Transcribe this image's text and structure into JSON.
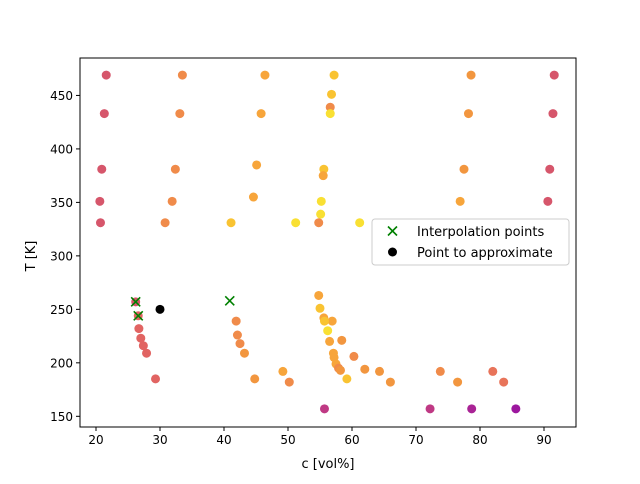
{
  "chart_data": {
    "type": "scatter",
    "xlabel": "c [vol%]",
    "ylabel": "T [K]",
    "xlim": [
      17.5,
      95
    ],
    "ylim": [
      140,
      485
    ],
    "xticks": [
      20,
      30,
      40,
      50,
      60,
      70,
      80,
      90
    ],
    "yticks": [
      150,
      200,
      250,
      300,
      350,
      400,
      450
    ],
    "grid": false,
    "legend": {
      "placement": "center-right"
    },
    "colors": {
      "interpolation_marker": "#008000",
      "approximate_marker": "#000000",
      "axes": "#000000"
    },
    "series": [
      {
        "name": "",
        "marker": "circle",
        "points": [
          {
            "x": 21.6,
            "y": 469,
            "color": "#d6566b"
          },
          {
            "x": 33.5,
            "y": 469,
            "color": "#f08b4a"
          },
          {
            "x": 46.4,
            "y": 469,
            "color": "#f7a53b"
          },
          {
            "x": 57.2,
            "y": 469,
            "color": "#f9c332"
          },
          {
            "x": 78.6,
            "y": 469,
            "color": "#f2963f"
          },
          {
            "x": 91.6,
            "y": 469,
            "color": "#d6566b"
          },
          {
            "x": 56.8,
            "y": 451,
            "color": "#f9c332"
          },
          {
            "x": 56.6,
            "y": 439,
            "color": "#f08b4a"
          },
          {
            "x": 21.3,
            "y": 433,
            "color": "#d6566b"
          },
          {
            "x": 33.1,
            "y": 433,
            "color": "#f08b4a"
          },
          {
            "x": 45.8,
            "y": 433,
            "color": "#f7a53b"
          },
          {
            "x": 56.6,
            "y": 433,
            "color": "#f9e033"
          },
          {
            "x": 78.2,
            "y": 433,
            "color": "#f2963f"
          },
          {
            "x": 91.4,
            "y": 433,
            "color": "#d6566b"
          },
          {
            "x": 45.1,
            "y": 385,
            "color": "#f7a53b"
          },
          {
            "x": 20.9,
            "y": 381,
            "color": "#d6566b"
          },
          {
            "x": 32.4,
            "y": 381,
            "color": "#f08b4a"
          },
          {
            "x": 55.6,
            "y": 381,
            "color": "#f9c332"
          },
          {
            "x": 77.5,
            "y": 381,
            "color": "#f2963f"
          },
          {
            "x": 90.9,
            "y": 381,
            "color": "#d6566b"
          },
          {
            "x": 55.5,
            "y": 375,
            "color": "#f7a53b"
          },
          {
            "x": 44.6,
            "y": 355,
            "color": "#f7a53b"
          },
          {
            "x": 20.6,
            "y": 351,
            "color": "#d6566b"
          },
          {
            "x": 31.9,
            "y": 351,
            "color": "#f08b4a"
          },
          {
            "x": 55.2,
            "y": 351,
            "color": "#f9e033"
          },
          {
            "x": 76.9,
            "y": 351,
            "color": "#f7a53b"
          },
          {
            "x": 90.6,
            "y": 351,
            "color": "#d6566b"
          },
          {
            "x": 55.1,
            "y": 339,
            "color": "#f9e033"
          },
          {
            "x": 20.7,
            "y": 331,
            "color": "#d6566b"
          },
          {
            "x": 30.8,
            "y": 331,
            "color": "#f08b4a"
          },
          {
            "x": 41.1,
            "y": 331,
            "color": "#f9c332"
          },
          {
            "x": 51.2,
            "y": 331,
            "color": "#f9e033"
          },
          {
            "x": 54.8,
            "y": 331,
            "color": "#f08b4a"
          },
          {
            "x": 61.2,
            "y": 331,
            "color": "#f9e033"
          },
          {
            "x": 54.8,
            "y": 263,
            "color": "#f7a53b"
          },
          {
            "x": 26.2,
            "y": 257,
            "color": "#d6566b"
          },
          {
            "x": 55.0,
            "y": 251,
            "color": "#f9c332"
          },
          {
            "x": 26.6,
            "y": 244,
            "color": "#e16462"
          },
          {
            "x": 55.6,
            "y": 242,
            "color": "#f7a53b"
          },
          {
            "x": 41.9,
            "y": 239,
            "color": "#f08b4a"
          },
          {
            "x": 56.9,
            "y": 239,
            "color": "#f7a53b"
          },
          {
            "x": 55.7,
            "y": 239,
            "color": "#f9c332"
          },
          {
            "x": 26.7,
            "y": 232,
            "color": "#e16462"
          },
          {
            "x": 56.2,
            "y": 230,
            "color": "#f9e033"
          },
          {
            "x": 42.1,
            "y": 226,
            "color": "#f08b4a"
          },
          {
            "x": 27.0,
            "y": 223,
            "color": "#e16462"
          },
          {
            "x": 58.4,
            "y": 221,
            "color": "#f2963f"
          },
          {
            "x": 56.5,
            "y": 220,
            "color": "#f7a53b"
          },
          {
            "x": 42.5,
            "y": 218,
            "color": "#f08b4a"
          },
          {
            "x": 27.4,
            "y": 216,
            "color": "#e16462"
          },
          {
            "x": 27.9,
            "y": 209,
            "color": "#e16462"
          },
          {
            "x": 43.2,
            "y": 209,
            "color": "#f2963f"
          },
          {
            "x": 57.1,
            "y": 209,
            "color": "#f7a53b"
          },
          {
            "x": 60.3,
            "y": 206,
            "color": "#f08b4a"
          },
          {
            "x": 57.2,
            "y": 205,
            "color": "#f7a53b"
          },
          {
            "x": 57.5,
            "y": 199,
            "color": "#f7a53b"
          },
          {
            "x": 57.9,
            "y": 195,
            "color": "#f08b4a"
          },
          {
            "x": 62.0,
            "y": 194,
            "color": "#f2963f"
          },
          {
            "x": 58.2,
            "y": 193,
            "color": "#f2963f"
          },
          {
            "x": 49.2,
            "y": 192,
            "color": "#f7a53b"
          },
          {
            "x": 64.3,
            "y": 192,
            "color": "#f2963f"
          },
          {
            "x": 73.8,
            "y": 192,
            "color": "#f08b4a"
          },
          {
            "x": 82.0,
            "y": 192,
            "color": "#e8745a"
          },
          {
            "x": 29.3,
            "y": 185,
            "color": "#e16462"
          },
          {
            "x": 44.8,
            "y": 185,
            "color": "#f2963f"
          },
          {
            "x": 59.2,
            "y": 185,
            "color": "#f9c332"
          },
          {
            "x": 50.2,
            "y": 182,
            "color": "#f08b4a"
          },
          {
            "x": 66.0,
            "y": 182,
            "color": "#f2963f"
          },
          {
            "x": 76.5,
            "y": 182,
            "color": "#f2963f"
          },
          {
            "x": 83.7,
            "y": 182,
            "color": "#e8745a"
          },
          {
            "x": 55.7,
            "y": 157,
            "color": "#bf3984"
          },
          {
            "x": 72.2,
            "y": 157,
            "color": "#bf3984"
          },
          {
            "x": 78.7,
            "y": 157,
            "color": "#a92395"
          },
          {
            "x": 85.6,
            "y": 157,
            "color": "#9c179e"
          }
        ]
      },
      {
        "name": "Interpolation points",
        "marker": "x",
        "color": "#008000",
        "points": [
          {
            "x": 26.2,
            "y": 257
          },
          {
            "x": 26.6,
            "y": 244
          },
          {
            "x": 40.9,
            "y": 258
          }
        ]
      },
      {
        "name": "Point to approximate",
        "marker": "circle",
        "color": "#000000",
        "points": [
          {
            "x": 30.0,
            "y": 250
          }
        ]
      }
    ]
  }
}
